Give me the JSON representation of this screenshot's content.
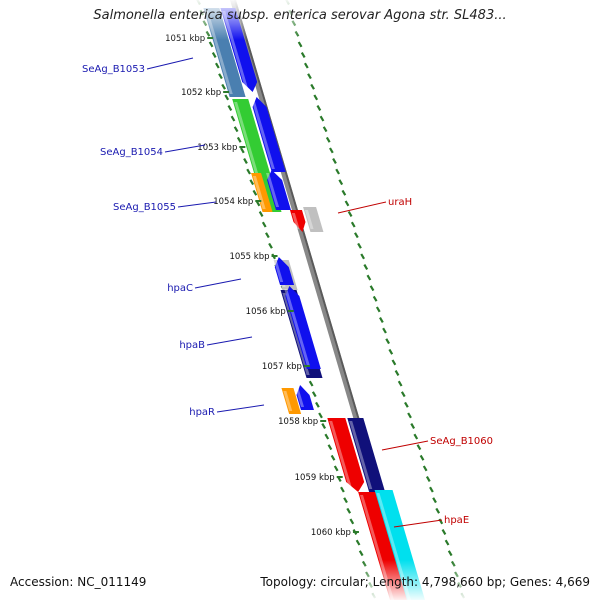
{
  "title": "Salmonella enterica subsp. enterica serovar Agona str. SL483...",
  "footer": {
    "accession": "Accession: NC_011149",
    "summary": "Topology: circular; Length: 4,798,660 bp; Genes: 4,669"
  },
  "colors": {
    "backbone": "#888888",
    "ticks": "#2a7a2a",
    "forward_label": "#1a1ab0",
    "reverse_label": "#c00000",
    "blue": "#1010ee",
    "navy": "#10107a",
    "steel": "#4a7fb0",
    "green": "#33cc33",
    "orange": "#ff9900",
    "gray": "#c0c0c0",
    "red": "#ee0000",
    "cyan": "#00e0ee"
  },
  "kbp_ticks": [
    {
      "value": 1051,
      "label": "1051 kbp"
    },
    {
      "value": 1052,
      "label": "1052 kbp"
    },
    {
      "value": 1053,
      "label": "1053 kbp"
    },
    {
      "value": 1054,
      "label": "1054 kbp"
    },
    {
      "value": 1055,
      "label": "1055 kbp"
    },
    {
      "value": 1056,
      "label": "1056 kbp"
    },
    {
      "value": 1057,
      "label": "1057 kbp"
    },
    {
      "value": 1058,
      "label": "1058 kbp"
    },
    {
      "value": 1059,
      "label": "1059 kbp"
    },
    {
      "value": 1060,
      "label": "1060 kbp"
    }
  ],
  "gene_labels": [
    {
      "text": "SeAg_B1053",
      "strand": "forward"
    },
    {
      "text": "SeAg_B1054",
      "strand": "forward"
    },
    {
      "text": "SeAg_B1055",
      "strand": "forward"
    },
    {
      "text": "hpaC",
      "strand": "forward"
    },
    {
      "text": "hpaB",
      "strand": "forward"
    },
    {
      "text": "hpaR",
      "strand": "forward"
    },
    {
      "text": "uraH",
      "strand": "reverse"
    },
    {
      "text": "SeAg_B1060",
      "strand": "reverse"
    },
    {
      "text": "hpaE",
      "strand": "reverse"
    }
  ]
}
